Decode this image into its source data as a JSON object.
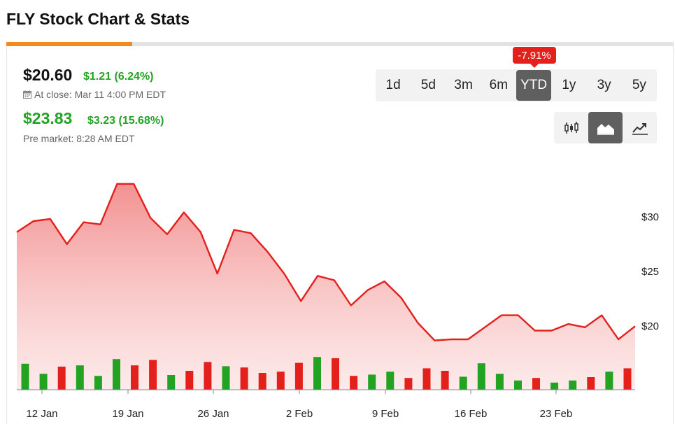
{
  "header": {
    "title": "FLY Stock Chart & Stats"
  },
  "quote": {
    "price": "$20.60",
    "change": "$1.21 (6.24%)",
    "close_label": "At close: Mar 11 4:00 PM EDT",
    "pre_price": "$23.83",
    "pre_change": "$3.23 (15.68%)",
    "pre_label": "Pre market: 8:28 AM EDT"
  },
  "ranges": {
    "badge": "-7.91%",
    "items": [
      "1d",
      "5d",
      "3m",
      "6m",
      "YTD",
      "1y",
      "3y",
      "5y"
    ],
    "active": "YTD"
  },
  "chart_types": {
    "items": [
      "candlestick-icon",
      "area-chart-icon",
      "line-chart-icon"
    ],
    "active": "area-chart-icon"
  },
  "colors": {
    "up": "#22a322",
    "down": "#e3201b",
    "accent": "#f08c1e",
    "line": "#e3201b"
  },
  "chart_data": {
    "type": "area",
    "x_ticks": [
      "12 Jan",
      "19 Jan",
      "26 Jan",
      "2 Feb",
      "9 Feb",
      "16 Feb",
      "23 Feb"
    ],
    "y_ticks": [
      "$30",
      "$25",
      "$20"
    ],
    "ylim": [
      14.2,
      33.5
    ],
    "price_series": [
      28.6,
      29.6,
      29.8,
      27.5,
      29.5,
      29.3,
      33.0,
      33.0,
      29.9,
      28.4,
      30.4,
      28.6,
      24.8,
      28.8,
      28.5,
      26.8,
      24.8,
      22.3,
      24.6,
      24.2,
      21.9,
      23.3,
      24.1,
      22.6,
      20.3,
      18.7,
      18.8,
      18.8,
      19.9,
      21.0,
      21.0,
      19.6,
      19.6,
      20.2,
      19.9,
      21.0,
      18.8,
      20.0
    ],
    "volume_bars": [
      {
        "v": 0.62,
        "up": true
      },
      {
        "v": 0.38,
        "up": true
      },
      {
        "v": 0.55,
        "up": false
      },
      {
        "v": 0.58,
        "up": true
      },
      {
        "v": 0.33,
        "up": true
      },
      {
        "v": 0.73,
        "up": true
      },
      {
        "v": 0.58,
        "up": false
      },
      {
        "v": 0.71,
        "up": false
      },
      {
        "v": 0.35,
        "up": true
      },
      {
        "v": 0.45,
        "up": false
      },
      {
        "v": 0.66,
        "up": false
      },
      {
        "v": 0.56,
        "up": true
      },
      {
        "v": 0.53,
        "up": false
      },
      {
        "v": 0.4,
        "up": false
      },
      {
        "v": 0.43,
        "up": false
      },
      {
        "v": 0.64,
        "up": false
      },
      {
        "v": 0.78,
        "up": true
      },
      {
        "v": 0.75,
        "up": false
      },
      {
        "v": 0.33,
        "up": false
      },
      {
        "v": 0.36,
        "up": true
      },
      {
        "v": 0.43,
        "up": true
      },
      {
        "v": 0.28,
        "up": false
      },
      {
        "v": 0.51,
        "up": false
      },
      {
        "v": 0.45,
        "up": false
      },
      {
        "v": 0.31,
        "up": true
      },
      {
        "v": 0.63,
        "up": true
      },
      {
        "v": 0.38,
        "up": true
      },
      {
        "v": 0.22,
        "up": true
      },
      {
        "v": 0.28,
        "up": false
      },
      {
        "v": 0.17,
        "up": true
      },
      {
        "v": 0.22,
        "up": true
      },
      {
        "v": 0.3,
        "up": false
      },
      {
        "v": 0.43,
        "up": true
      },
      {
        "v": 0.51,
        "up": false
      }
    ]
  }
}
